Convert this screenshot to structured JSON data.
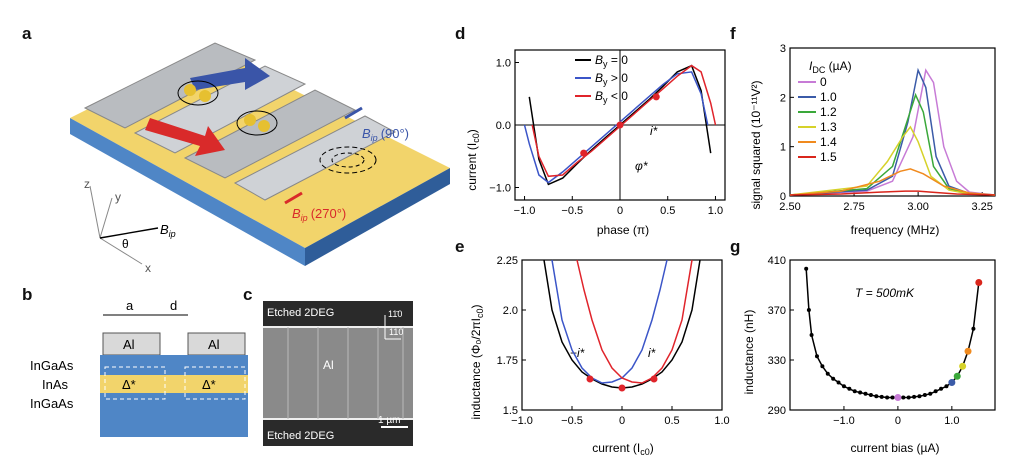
{
  "panels": {
    "a": {
      "label": "a",
      "b_ip_90": "B",
      "b_ip_90_sub": "ip",
      "b_ip_90_angle": "(90°)",
      "b_ip_270": "B",
      "b_ip_270_sub": "ip",
      "b_ip_270_angle": "(270°)",
      "axis_x": "x",
      "axis_y": "y",
      "axis_z": "z",
      "theta": "θ",
      "bvec": "B",
      "bvec_sub": "ip"
    },
    "b": {
      "label": "b",
      "dim_a": "a",
      "dim_d": "d",
      "al_left": "Al",
      "al_right": "Al",
      "layer_top": "InGaAs",
      "layer_mid": "InAs",
      "layer_bot": "InGaAs",
      "delta_left": "Δ*",
      "delta_right": "Δ*"
    },
    "c": {
      "label": "c",
      "top_text": "Etched 2DEG",
      "bottom_text": "Etched 2DEG",
      "center_text": "Al",
      "dir1": "11̄0",
      "dir2": "110",
      "scale": "1 µm"
    },
    "d": {
      "label": "d",
      "ylabel": "current (I",
      "ylabel_sub": "c0",
      "ylabel_end": ")",
      "xlabel": "phase (π)",
      "istar": "i*",
      "phistar": "φ*",
      "legend": [
        {
          "text": "B",
          "sub": "y",
          "rel": " = 0",
          "color": "#000000"
        },
        {
          "text": "B",
          "sub": "y",
          "rel": " > 0",
          "color": "#3b55c8"
        },
        {
          "text": "B",
          "sub": "y",
          "rel": " < 0",
          "color": "#e0242b"
        }
      ]
    },
    "e": {
      "label": "e",
      "ylabel": "inductance (Φ₀/2πI",
      "ylabel_sub": "c0",
      "ylabel_end": ")",
      "xlabel": "current (I",
      "xlabel_sub": "c0",
      "xlabel_end": ")",
      "neg_istar": "−i*",
      "istar": "i*"
    },
    "f": {
      "label": "f",
      "ylabel": "signal squared (10⁻¹¹V²)",
      "xlabel": "frequency (MHz)",
      "legend_title": "I",
      "legend_title_sub": "DC",
      "legend_title_unit": " (µA)"
    },
    "g": {
      "label": "g",
      "ylabel": "inductance (nH)",
      "xlabel": "current bias (µA)",
      "annotation": "T = 500mK"
    }
  },
  "chart_data": [
    {
      "panel": "d",
      "type": "line",
      "xlim": [
        -1.1,
        1.1
      ],
      "ylim": [
        -1.2,
        1.2
      ],
      "xticks": [
        "−1.0",
        "−0.5",
        "0",
        "0.5",
        "1.0"
      ],
      "xtick_vals": [
        -1.0,
        -0.5,
        0,
        0.5,
        1.0
      ],
      "yticks": [
        "−1.0",
        "0.0",
        "1.0"
      ],
      "ytick_vals": [
        -1.0,
        0.0,
        1.0
      ],
      "series": [
        {
          "name": "By = 0",
          "color": "#000000",
          "x": [
            -0.95,
            -0.85,
            -0.75,
            -0.6,
            -0.45,
            -0.3,
            -0.15,
            0,
            0.15,
            0.3,
            0.45,
            0.6,
            0.75,
            0.85,
            0.95
          ],
          "y": [
            0.45,
            -0.55,
            -0.95,
            -0.85,
            -0.62,
            -0.4,
            -0.2,
            0.0,
            0.2,
            0.4,
            0.62,
            0.85,
            0.95,
            0.55,
            -0.45
          ]
        },
        {
          "name": "By > 0",
          "color": "#3b55c8",
          "x": [
            -1.0,
            -0.95,
            -0.85,
            -0.75,
            -0.6,
            -0.45,
            -0.3,
            -0.15,
            0,
            0.15,
            0.3,
            0.45,
            0.6,
            0.75,
            0.85,
            0.92
          ],
          "y": [
            0.0,
            -0.3,
            -0.8,
            -0.92,
            -0.75,
            -0.55,
            -0.35,
            -0.15,
            0.05,
            0.25,
            0.45,
            0.65,
            0.82,
            0.85,
            0.5,
            0.0
          ]
        },
        {
          "name": "By < 0",
          "color": "#e0242b",
          "x": [
            -0.92,
            -0.85,
            -0.75,
            -0.6,
            -0.45,
            -0.3,
            -0.15,
            0,
            0.15,
            0.3,
            0.45,
            0.6,
            0.75,
            0.85,
            0.95,
            1.0
          ],
          "y": [
            0.0,
            -0.5,
            -0.82,
            -0.8,
            -0.6,
            -0.42,
            -0.22,
            -0.02,
            0.18,
            0.38,
            0.58,
            0.78,
            0.95,
            0.85,
            0.35,
            0.0
          ]
        }
      ],
      "markers": [
        {
          "x": -0.38,
          "y": -0.45,
          "color": "#e0242b"
        },
        {
          "x": 0.0,
          "y": 0.0,
          "color": "#e0242b"
        },
        {
          "x": 0.38,
          "y": 0.45,
          "color": "#e0242b"
        }
      ]
    },
    {
      "panel": "e",
      "type": "line",
      "xlim": [
        -1.0,
        1.0
      ],
      "ylim": [
        1.5,
        2.25
      ],
      "xticks": [
        "−1.0",
        "−0.5",
        "0",
        "0.5",
        "1.0"
      ],
      "xtick_vals": [
        -1.0,
        -0.5,
        0,
        0.5,
        1.0
      ],
      "yticks": [
        "1.5",
        "1.75",
        "2.0",
        "2.25"
      ],
      "ytick_vals": [
        1.5,
        1.75,
        2.0,
        2.25
      ],
      "series": [
        {
          "name": "By = 0",
          "color": "#000000",
          "x": [
            -0.78,
            -0.7,
            -0.6,
            -0.5,
            -0.4,
            -0.3,
            -0.2,
            -0.1,
            0,
            0.1,
            0.2,
            0.3,
            0.4,
            0.5,
            0.6,
            0.7,
            0.78
          ],
          "y": [
            2.25,
            2.0,
            1.84,
            1.75,
            1.69,
            1.655,
            1.63,
            1.615,
            1.61,
            1.615,
            1.63,
            1.655,
            1.69,
            1.75,
            1.84,
            2.0,
            2.25
          ]
        },
        {
          "name": "By > 0",
          "color": "#3b55c8",
          "x": [
            -0.7,
            -0.6,
            -0.5,
            -0.4,
            -0.3,
            -0.2,
            -0.1,
            0,
            0.1,
            0.2,
            0.3,
            0.38,
            0.45
          ],
          "y": [
            2.25,
            1.95,
            1.8,
            1.71,
            1.66,
            1.635,
            1.64,
            1.66,
            1.71,
            1.8,
            1.95,
            2.1,
            2.25
          ]
        },
        {
          "name": "By < 0",
          "color": "#e0242b",
          "x": [
            -0.45,
            -0.38,
            -0.3,
            -0.2,
            -0.1,
            0,
            0.1,
            0.2,
            0.3,
            0.4,
            0.5,
            0.6,
            0.7
          ],
          "y": [
            2.25,
            2.1,
            1.95,
            1.8,
            1.71,
            1.66,
            1.64,
            1.635,
            1.66,
            1.71,
            1.8,
            1.95,
            2.25
          ]
        }
      ],
      "markers": [
        {
          "x": -0.32,
          "y": 1.655,
          "color": "#e0242b"
        },
        {
          "x": 0.0,
          "y": 1.61,
          "color": "#e0242b"
        },
        {
          "x": 0.32,
          "y": 1.655,
          "color": "#e0242b"
        }
      ]
    },
    {
      "panel": "f",
      "type": "line",
      "xlim": [
        2.5,
        3.3
      ],
      "ylim": [
        0,
        3
      ],
      "xticks": [
        "2.50",
        "2.75",
        "3.00",
        "3.25"
      ],
      "xtick_vals": [
        2.5,
        2.75,
        3.0,
        3.25
      ],
      "yticks": [
        "0",
        "1",
        "2",
        "3"
      ],
      "ytick_vals": [
        0,
        1,
        2,
        3
      ],
      "series": [
        {
          "name": "0",
          "color": "#c77bd6",
          "x": [
            2.5,
            2.8,
            2.9,
            2.98,
            3.03,
            3.06,
            3.1,
            3.15,
            3.2,
            3.3
          ],
          "y": [
            0.02,
            0.1,
            0.3,
            1.2,
            2.55,
            2.3,
            1.0,
            0.3,
            0.08,
            0.02
          ]
        },
        {
          "name": "1.0",
          "color": "#3b5ba8",
          "x": [
            2.5,
            2.8,
            2.9,
            2.96,
            3.0,
            3.03,
            3.07,
            3.12,
            3.2,
            3.3
          ],
          "y": [
            0.02,
            0.12,
            0.4,
            1.5,
            2.55,
            2.2,
            0.8,
            0.2,
            0.05,
            0.02
          ]
        },
        {
          "name": "1.2",
          "color": "#3aa83a",
          "x": [
            2.5,
            2.8,
            2.9,
            2.95,
            2.99,
            3.02,
            3.06,
            3.12,
            3.2,
            3.3
          ],
          "y": [
            0.02,
            0.15,
            0.6,
            1.4,
            2.05,
            1.7,
            0.6,
            0.15,
            0.04,
            0.02
          ]
        },
        {
          "name": "1.3",
          "color": "#d6d22a",
          "x": [
            2.5,
            2.8,
            2.88,
            2.94,
            2.97,
            3.0,
            3.05,
            3.12,
            3.2,
            3.3
          ],
          "y": [
            0.02,
            0.2,
            0.7,
            1.2,
            1.4,
            1.1,
            0.4,
            0.12,
            0.04,
            0.02
          ]
        },
        {
          "name": "1.4",
          "color": "#f08a1e",
          "x": [
            2.5,
            2.7,
            2.85,
            2.93,
            2.97,
            3.02,
            3.1,
            3.2,
            3.3
          ],
          "y": [
            0.02,
            0.1,
            0.3,
            0.5,
            0.55,
            0.45,
            0.2,
            0.06,
            0.02
          ]
        },
        {
          "name": "1.5",
          "color": "#d9261c",
          "x": [
            2.5,
            2.7,
            2.85,
            2.95,
            3.0,
            3.05,
            3.15,
            3.3
          ],
          "y": [
            0.02,
            0.04,
            0.08,
            0.1,
            0.1,
            0.08,
            0.04,
            0.02
          ]
        }
      ]
    },
    {
      "panel": "g",
      "type": "line",
      "xlim": [
        -2.0,
        1.8
      ],
      "ylim": [
        290,
        410
      ],
      "xticks": [
        "−1.0",
        "0",
        "1.0"
      ],
      "xtick_vals": [
        -1.0,
        0,
        1.0
      ],
      "yticks": [
        "290",
        "330",
        "370",
        "410"
      ],
      "ytick_vals": [
        290,
        330,
        370,
        410
      ],
      "series": [
        {
          "name": "data",
          "color": "#000000",
          "x": [
            -1.7,
            -1.65,
            -1.6,
            -1.5,
            -1.4,
            -1.3,
            -1.2,
            -1.1,
            -1.0,
            -0.9,
            -0.8,
            -0.7,
            -0.6,
            -0.5,
            -0.4,
            -0.3,
            -0.2,
            -0.1,
            0,
            0.1,
            0.2,
            0.3,
            0.4,
            0.5,
            0.6,
            0.7,
            0.8,
            0.9,
            1.0,
            1.1,
            1.2,
            1.3,
            1.4,
            1.5
          ],
          "y": [
            403,
            370,
            350,
            333,
            325,
            319,
            315,
            312,
            309,
            307,
            305,
            304,
            303,
            302,
            301,
            300.5,
            300,
            300,
            300,
            300,
            300,
            300.5,
            301,
            302,
            303,
            305,
            307,
            309,
            312,
            317,
            325,
            337,
            355,
            392
          ]
        }
      ],
      "markers": [
        {
          "x": 0.0,
          "y": 300,
          "color": "#c77bd6"
        },
        {
          "x": 1.0,
          "y": 312,
          "color": "#3b5ba8"
        },
        {
          "x": 1.1,
          "y": 317,
          "color": "#3aa83a"
        },
        {
          "x": 1.2,
          "y": 325,
          "color": "#d6d22a"
        },
        {
          "x": 1.3,
          "y": 337,
          "color": "#f08a1e"
        },
        {
          "x": 1.5,
          "y": 392,
          "color": "#d9261c"
        }
      ]
    }
  ]
}
